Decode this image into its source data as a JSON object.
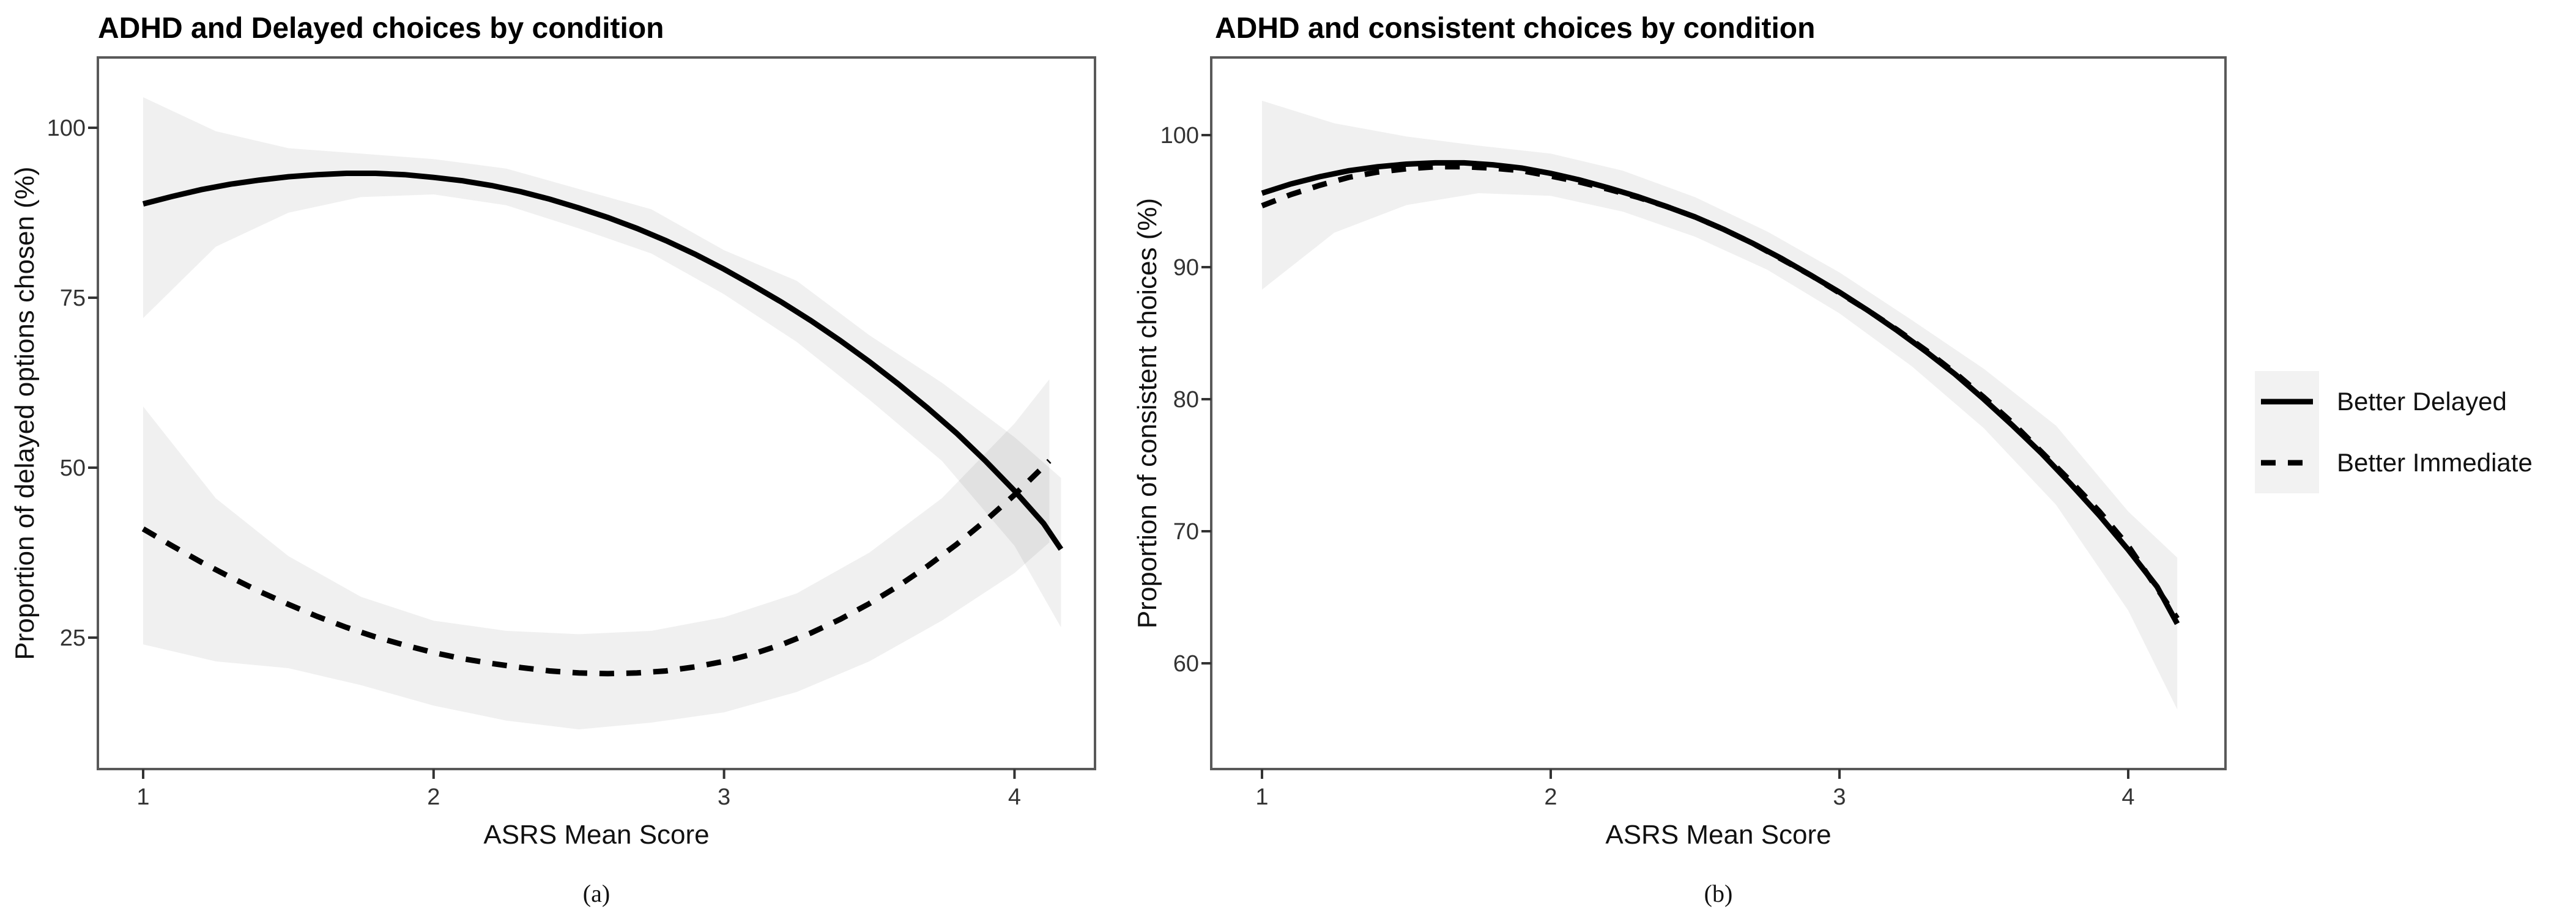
{
  "page": {
    "background": "#ffffff"
  },
  "style": {
    "band_color": "rgba(0,0,0,0.06)",
    "line_color": "#000000",
    "border_color": "#595959",
    "tick_color": "#333333",
    "legend_key_bg": "#f2f2f2"
  },
  "legend": {
    "items": [
      {
        "label": "Better Delayed",
        "style": "solid"
      },
      {
        "label": "Better Immediate",
        "style": "dashed"
      }
    ]
  },
  "chart_data": [
    {
      "type": "line",
      "title": "ADHD and Delayed choices by condition",
      "xlabel": "ASRS Mean Score",
      "ylabel": "Proportion of delayed options chosen (%)",
      "caption": "(a)",
      "x_ticks": [
        1,
        2,
        3,
        4
      ],
      "y_ticks": [
        100,
        75,
        50,
        25
      ],
      "xlim": [
        0.84,
        4.28
      ],
      "ylim": [
        6,
        110
      ],
      "grid": false,
      "legend_position": "right-of-figure",
      "series": [
        {
          "name": "Better Delayed",
          "linestyle": "solid",
          "points": [
            [
              1.0,
              88.8
            ],
            [
              1.1,
              89.9
            ],
            [
              1.2,
              90.9
            ],
            [
              1.3,
              91.7
            ],
            [
              1.4,
              92.3
            ],
            [
              1.5,
              92.8
            ],
            [
              1.6,
              93.1
            ],
            [
              1.7,
              93.3
            ],
            [
              1.8,
              93.3
            ],
            [
              1.9,
              93.1
            ],
            [
              2.0,
              92.7
            ],
            [
              2.1,
              92.2
            ],
            [
              2.2,
              91.5
            ],
            [
              2.3,
              90.6
            ],
            [
              2.4,
              89.5
            ],
            [
              2.5,
              88.2
            ],
            [
              2.6,
              86.8
            ],
            [
              2.7,
              85.2
            ],
            [
              2.8,
              83.4
            ],
            [
              2.9,
              81.4
            ],
            [
              3.0,
              79.2
            ],
            [
              3.1,
              76.8
            ],
            [
              3.2,
              74.3
            ],
            [
              3.3,
              71.6
            ],
            [
              3.4,
              68.7
            ],
            [
              3.5,
              65.6
            ],
            [
              3.6,
              62.3
            ],
            [
              3.7,
              58.8
            ],
            [
              3.8,
              55.1
            ],
            [
              3.9,
              51.0
            ],
            [
              4.0,
              46.6
            ],
            [
              4.1,
              41.8
            ],
            [
              4.16,
              38.0
            ]
          ],
          "band": {
            "x": [
              1.0,
              1.25,
              1.5,
              1.75,
              2.0,
              2.25,
              2.5,
              2.75,
              3.0,
              3.25,
              3.5,
              3.75,
              4.0,
              4.16
            ],
            "upper": [
              104.5,
              99.5,
              97.0,
              96.2,
              95.4,
              94.0,
              91.0,
              88.0,
              82.0,
              77.5,
              69.5,
              62.5,
              54.5,
              48.5
            ],
            "lower": [
              72.0,
              82.5,
              87.5,
              89.8,
              90.2,
              88.6,
              85.2,
              81.5,
              75.5,
              68.5,
              60.0,
              51.0,
              38.5,
              26.5
            ]
          }
        },
        {
          "name": "Better Immediate",
          "linestyle": "dashed",
          "points": [
            [
              1.0,
              41.0
            ],
            [
              1.1,
              38.5
            ],
            [
              1.2,
              36.1
            ],
            [
              1.3,
              33.9
            ],
            [
              1.4,
              31.8
            ],
            [
              1.5,
              29.9
            ],
            [
              1.6,
              28.1
            ],
            [
              1.7,
              26.5
            ],
            [
              1.8,
              25.1
            ],
            [
              1.9,
              23.9
            ],
            [
              2.0,
              22.8
            ],
            [
              2.1,
              21.9
            ],
            [
              2.2,
              21.2
            ],
            [
              2.3,
              20.6
            ],
            [
              2.4,
              20.1
            ],
            [
              2.5,
              19.8
            ],
            [
              2.6,
              19.7
            ],
            [
              2.7,
              19.8
            ],
            [
              2.8,
              20.1
            ],
            [
              2.9,
              20.7
            ],
            [
              3.0,
              21.5
            ],
            [
              3.1,
              22.6
            ],
            [
              3.2,
              24.0
            ],
            [
              3.3,
              25.7
            ],
            [
              3.4,
              27.7
            ],
            [
              3.5,
              30.0
            ],
            [
              3.6,
              32.6
            ],
            [
              3.7,
              35.5
            ],
            [
              3.8,
              38.7
            ],
            [
              3.9,
              42.2
            ],
            [
              4.0,
              46.0
            ],
            [
              4.12,
              51.0
            ]
          ],
          "band": {
            "x": [
              1.0,
              1.25,
              1.5,
              1.75,
              2.0,
              2.25,
              2.5,
              2.75,
              3.0,
              3.25,
              3.5,
              3.75,
              4.0,
              4.12
            ],
            "upper": [
              59.0,
              45.5,
              37.0,
              31.0,
              27.5,
              26.0,
              25.5,
              26.0,
              28.0,
              31.5,
              37.5,
              45.5,
              56.5,
              63.0
            ],
            "lower": [
              24.0,
              21.5,
              20.5,
              18.0,
              15.0,
              12.8,
              11.5,
              12.5,
              14.0,
              17.0,
              21.5,
              27.5,
              34.5,
              39.0
            ]
          }
        }
      ]
    },
    {
      "type": "line",
      "title": "ADHD and consistent choices by condition",
      "xlabel": "ASRS Mean Score",
      "ylabel": "Proportion of consistent choices (%)",
      "caption": "(b)",
      "x_ticks": [
        1,
        2,
        3,
        4
      ],
      "y_ticks": [
        100,
        90,
        80,
        70,
        60
      ],
      "xlim": [
        0.82,
        4.34
      ],
      "ylim": [
        52,
        106
      ],
      "grid": false,
      "legend_position": "right-of-figure",
      "series": [
        {
          "name": "Better Delayed",
          "linestyle": "solid",
          "points": [
            [
              1.0,
              95.6
            ],
            [
              1.1,
              96.3
            ],
            [
              1.2,
              96.85
            ],
            [
              1.3,
              97.3
            ],
            [
              1.4,
              97.6
            ],
            [
              1.5,
              97.8
            ],
            [
              1.6,
              97.9
            ],
            [
              1.7,
              97.9
            ],
            [
              1.8,
              97.75
            ],
            [
              1.9,
              97.5
            ],
            [
              2.0,
              97.1
            ],
            [
              2.1,
              96.6
            ],
            [
              2.2,
              96.0
            ],
            [
              2.3,
              95.35
            ],
            [
              2.4,
              94.6
            ],
            [
              2.5,
              93.8
            ],
            [
              2.6,
              92.85
            ],
            [
              2.7,
              91.8
            ],
            [
              2.8,
              90.65
            ],
            [
              2.9,
              89.4
            ],
            [
              3.0,
              88.1
            ],
            [
              3.1,
              86.7
            ],
            [
              3.2,
              85.2
            ],
            [
              3.3,
              83.6
            ],
            [
              3.4,
              81.9
            ],
            [
              3.5,
              80.0
            ],
            [
              3.6,
              78.0
            ],
            [
              3.7,
              75.9
            ],
            [
              3.8,
              73.6
            ],
            [
              3.9,
              71.2
            ],
            [
              4.0,
              68.6
            ],
            [
              4.1,
              65.8
            ],
            [
              4.17,
              63.0
            ]
          ],
          "band": {
            "x": [
              1.0,
              1.25,
              1.5,
              1.75,
              2.0,
              2.25,
              2.5,
              2.75,
              3.0,
              3.25,
              3.5,
              3.75,
              4.0,
              4.17
            ],
            "upper": [
              102.6,
              100.9,
              99.9,
              99.2,
              98.6,
              97.3,
              95.3,
              92.7,
              89.6,
              86.0,
              82.3,
              78.0,
              71.5,
              68.0
            ],
            "lower": [
              88.3,
              92.6,
              94.7,
              95.6,
              95.4,
              94.2,
              92.3,
              89.8,
              86.5,
              82.5,
              77.8,
              72.0,
              64.0,
              56.5
            ]
          }
        },
        {
          "name": "Better Immediate",
          "linestyle": "dashed",
          "points": [
            [
              1.0,
              94.65
            ],
            [
              1.1,
              95.5
            ],
            [
              1.2,
              96.2
            ],
            [
              1.3,
              96.8
            ],
            [
              1.4,
              97.2
            ],
            [
              1.5,
              97.45
            ],
            [
              1.6,
              97.6
            ],
            [
              1.7,
              97.6
            ],
            [
              1.8,
              97.5
            ],
            [
              1.9,
              97.3
            ],
            [
              2.0,
              96.9
            ],
            [
              2.1,
              96.45
            ],
            [
              2.2,
              95.9
            ],
            [
              2.3,
              95.3
            ],
            [
              2.4,
              94.6
            ],
            [
              2.5,
              93.8
            ],
            [
              2.6,
              92.85
            ],
            [
              2.7,
              91.8
            ],
            [
              2.8,
              90.6
            ],
            [
              2.9,
              89.4
            ],
            [
              3.0,
              88.05
            ],
            [
              3.1,
              86.7
            ],
            [
              3.2,
              85.25
            ],
            [
              3.3,
              83.7
            ],
            [
              3.4,
              82.0
            ],
            [
              3.5,
              80.15
            ],
            [
              3.6,
              78.2
            ],
            [
              3.7,
              76.0
            ],
            [
              3.8,
              73.8
            ],
            [
              3.9,
              71.5
            ],
            [
              4.0,
              68.9
            ],
            [
              4.17,
              63.4
            ]
          ],
          "band": null
        }
      ]
    }
  ]
}
